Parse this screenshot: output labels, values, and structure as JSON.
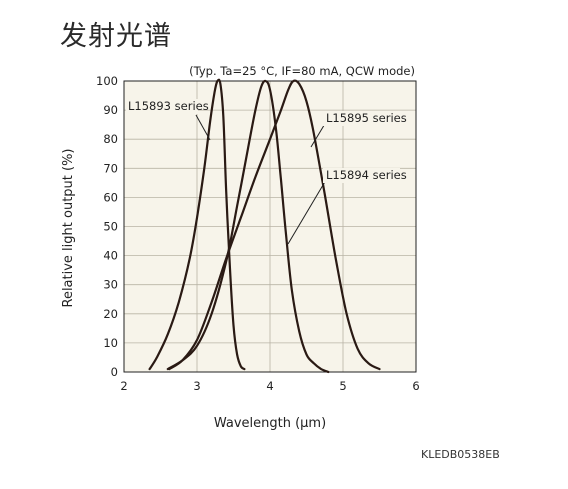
{
  "page": {
    "title": "发射光谱",
    "doc_code": "KLEDB0538EB"
  },
  "chart_data": {
    "type": "line",
    "note": "(Typ. Ta=25 °C, IF=80 mA, QCW mode)",
    "xlabel": "Wavelength (µm)",
    "ylabel": "Relative light output (%)",
    "xlim": [
      2,
      6
    ],
    "ylim": [
      0,
      100
    ],
    "x_ticks": [
      2,
      3,
      4,
      5,
      6
    ],
    "y_ticks": [
      0,
      10,
      20,
      30,
      40,
      50,
      60,
      70,
      80,
      90,
      100
    ],
    "grid": true,
    "colors": {
      "curve": "#2a1a14",
      "plot_bg": "#f7f4ea",
      "grid": "#b8b3a5"
    },
    "series": [
      {
        "name": "L15893 series",
        "x": [
          2.35,
          2.45,
          2.6,
          2.75,
          2.9,
          3.0,
          3.1,
          3.18,
          3.24,
          3.28,
          3.32,
          3.36,
          3.4,
          3.45,
          3.5,
          3.55,
          3.6,
          3.65
        ],
        "y": [
          1,
          5,
          13,
          24,
          39,
          53,
          70,
          86,
          96,
          100,
          99,
          88,
          62,
          36,
          16,
          6,
          2,
          1
        ]
      },
      {
        "name": "L15895 series",
        "x": [
          2.6,
          2.8,
          3.0,
          3.2,
          3.4,
          3.55,
          3.7,
          3.8,
          3.88,
          3.94,
          4.0,
          4.08,
          4.15,
          4.22,
          4.3,
          4.4,
          4.5,
          4.6,
          4.7,
          4.8
        ],
        "y": [
          1,
          4,
          9,
          20,
          38,
          57,
          77,
          90,
          98,
          100,
          97,
          84,
          66,
          47,
          28,
          14,
          6,
          3,
          1,
          0
        ]
      },
      {
        "name": "L15894 series",
        "x": [
          2.62,
          2.8,
          3.0,
          3.2,
          3.4,
          3.6,
          3.8,
          4.0,
          4.15,
          4.25,
          4.32,
          4.4,
          4.5,
          4.6,
          4.75,
          4.9,
          5.05,
          5.2,
          5.35,
          5.5
        ],
        "y": [
          1,
          4,
          11,
          24,
          39,
          53,
          67,
          80,
          90,
          97,
          100,
          99,
          93,
          82,
          61,
          39,
          20,
          8,
          3,
          1
        ]
      }
    ],
    "annotations": [
      {
        "text": "L15893 series",
        "series": "L15893 series"
      },
      {
        "text": "L15895 series",
        "series": "L15895 series"
      },
      {
        "text": "L15894 series",
        "series": "L15894 series"
      }
    ]
  }
}
